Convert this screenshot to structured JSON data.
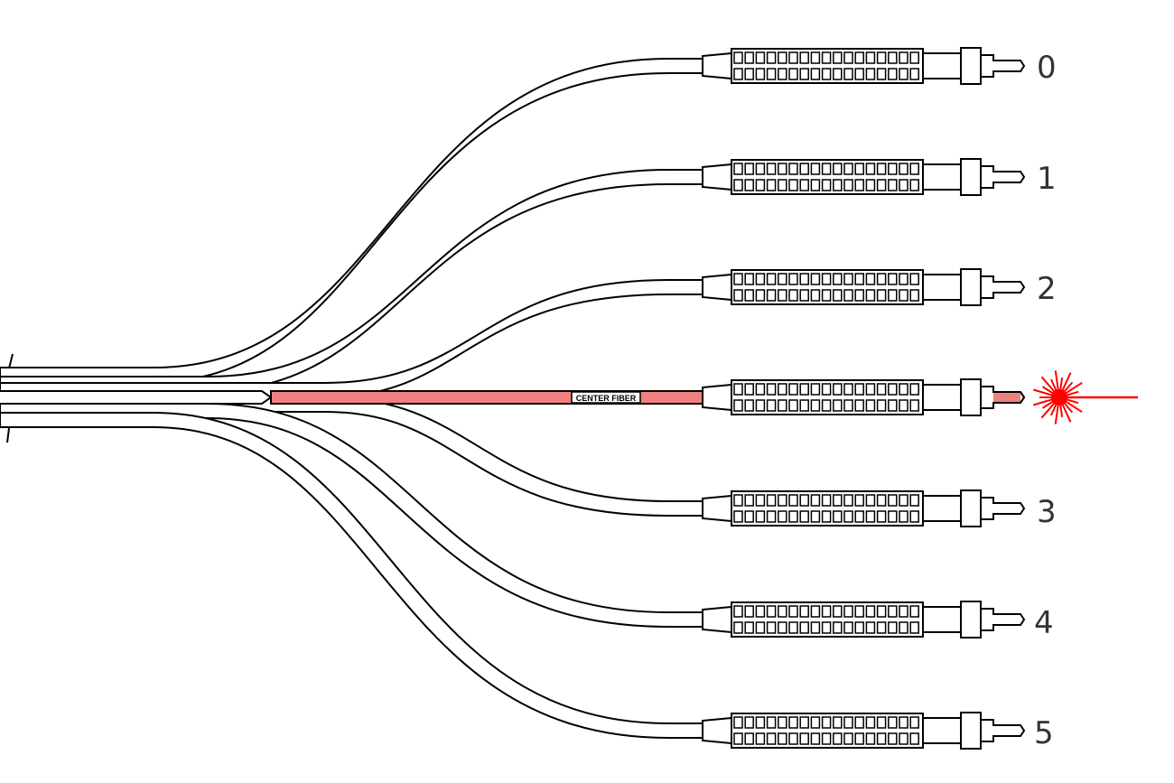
{
  "diagram": {
    "center_fiber_label": "CENTER FIBER",
    "center_fiber_color": "#f08080",
    "laser_color": "#ff0000",
    "line_color": "#000000",
    "text_color": "#333333",
    "laser_icon": "laser-starburst-icon",
    "fibers": [
      {
        "label": "0"
      },
      {
        "label": "1"
      },
      {
        "label": "2"
      },
      {
        "label": "3"
      },
      {
        "label": "4"
      },
      {
        "label": "5"
      }
    ]
  }
}
